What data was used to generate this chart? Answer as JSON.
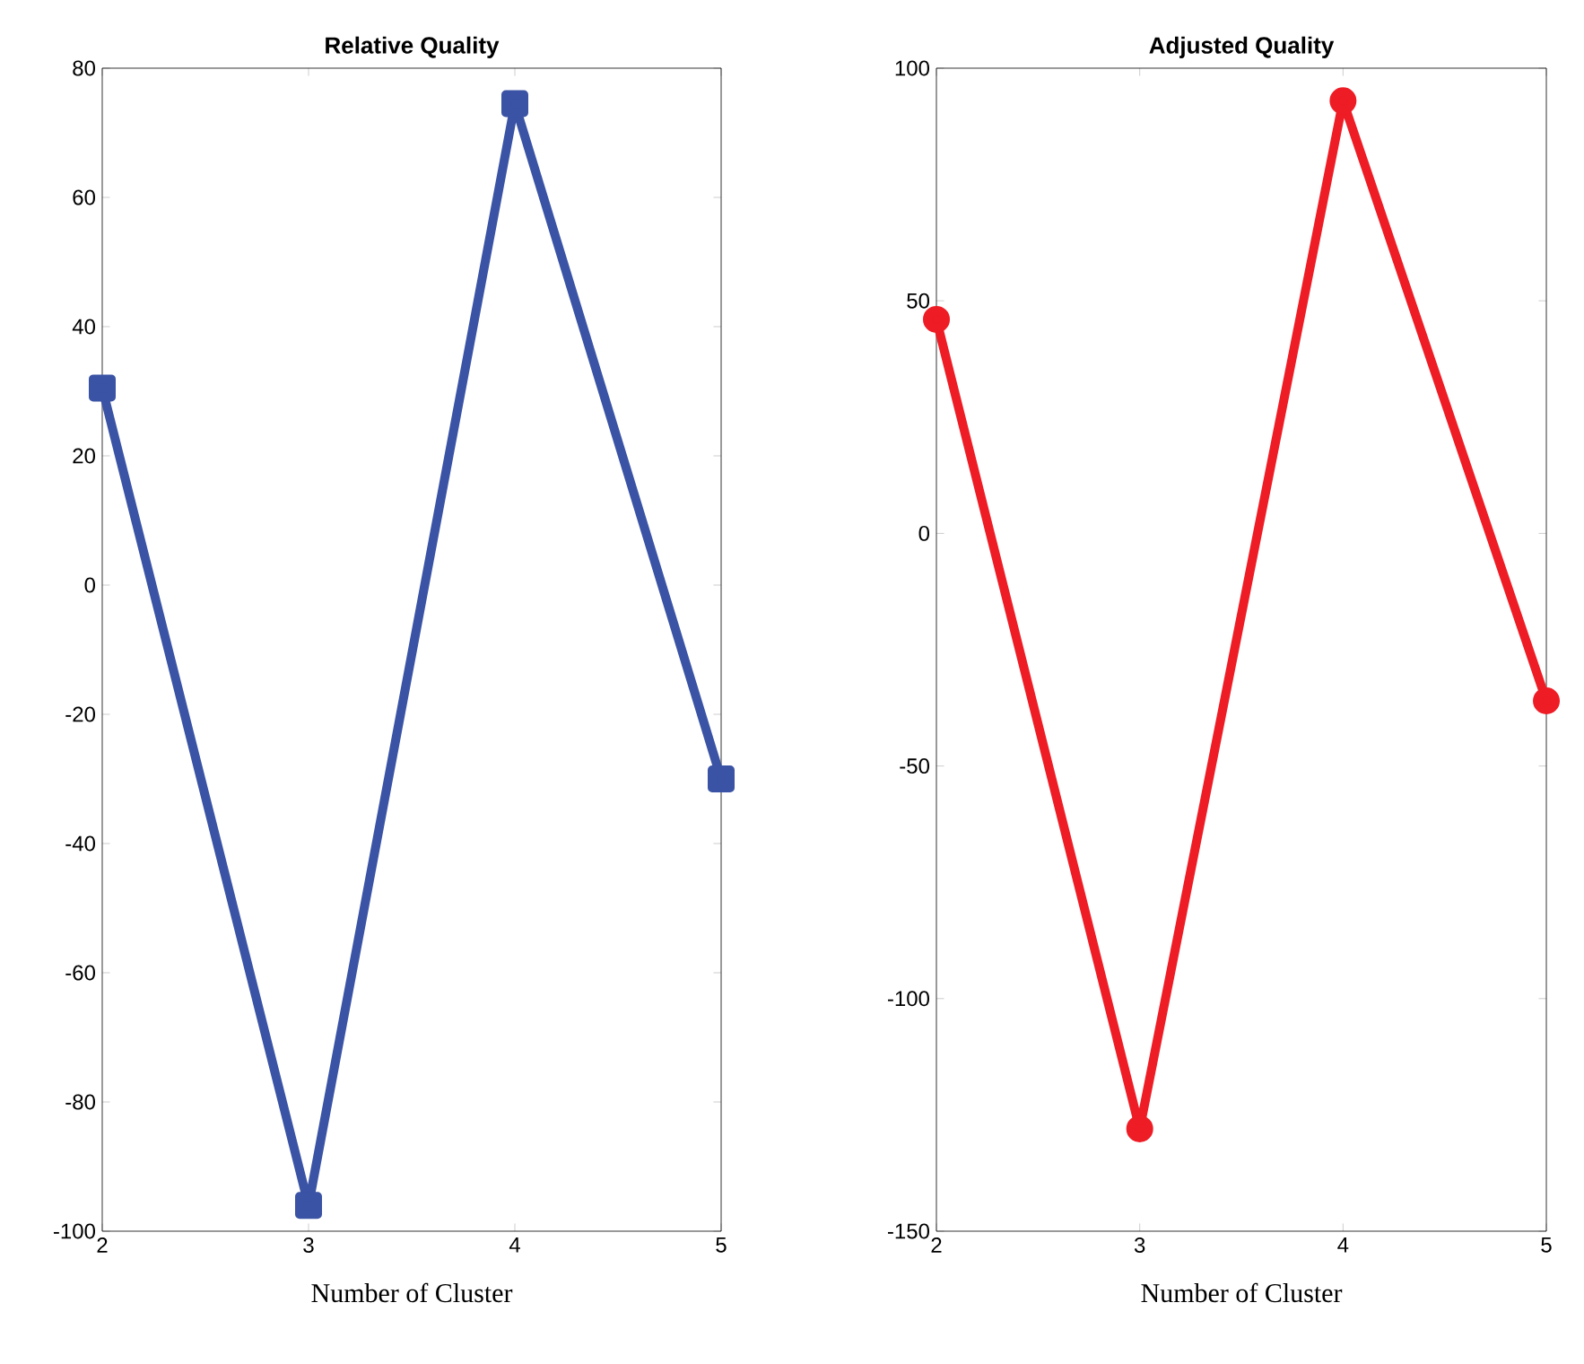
{
  "chart_data": [
    {
      "type": "line",
      "title": "Relative Quality",
      "xlabel": "Number of Cluster",
      "x": [
        2,
        3,
        4,
        5
      ],
      "xlim": [
        2,
        5
      ],
      "xticks": [
        2,
        3,
        4,
        5
      ],
      "ylim": [
        -100,
        80
      ],
      "yticks": [
        -100,
        -80,
        -60,
        -40,
        -20,
        0,
        20,
        40,
        60,
        80
      ],
      "marker": "square",
      "series": [
        {
          "color": "#3a53a4",
          "values": [
            30.5,
            -96,
            74.5,
            -30
          ]
        }
      ]
    },
    {
      "type": "line",
      "title": "Adjusted Quality",
      "xlabel": "Number of Cluster",
      "x": [
        2,
        3,
        4,
        5
      ],
      "xlim": [
        2,
        5
      ],
      "xticks": [
        2,
        3,
        4,
        5
      ],
      "ylim": [
        -150,
        100
      ],
      "yticks": [
        -150,
        -100,
        -50,
        0,
        50,
        100
      ],
      "marker": "circle",
      "series": [
        {
          "color": "#ee1c25",
          "values": [
            46,
            -128,
            93,
            -36
          ]
        }
      ]
    }
  ]
}
